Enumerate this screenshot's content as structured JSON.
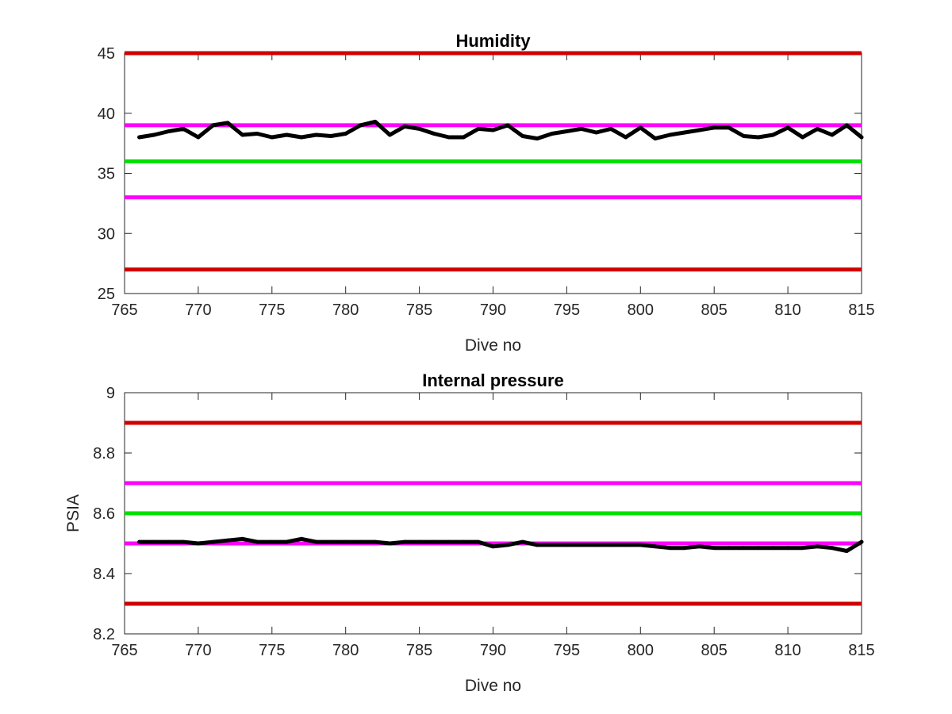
{
  "chart_data": [
    {
      "type": "line",
      "title": "Humidity",
      "xlabel": "Dive no",
      "ylabel": "",
      "xlim": [
        765,
        815
      ],
      "ylim": [
        25,
        45
      ],
      "x_ticks": [
        765,
        770,
        775,
        780,
        785,
        790,
        795,
        800,
        805,
        810,
        815
      ],
      "y_ticks": [
        25,
        30,
        35,
        40,
        45
      ],
      "y_tick_labels": [
        "25",
        "30",
        "35",
        "40",
        "45"
      ],
      "grid": false,
      "legend": "none",
      "thresholds": [
        {
          "y": 45,
          "color": "#d00000"
        },
        {
          "y": 39,
          "color": "#ff00ff"
        },
        {
          "y": 36,
          "color": "#00e000"
        },
        {
          "y": 33,
          "color": "#ff00ff"
        },
        {
          "y": 27,
          "color": "#d00000"
        }
      ],
      "series": [
        {
          "color": "#000000",
          "x": [
            766,
            767,
            768,
            769,
            770,
            771,
            772,
            773,
            774,
            775,
            776,
            777,
            778,
            779,
            780,
            781,
            782,
            783,
            784,
            785,
            786,
            787,
            788,
            789,
            790,
            791,
            792,
            793,
            794,
            795,
            796,
            797,
            798,
            799,
            800,
            801,
            802,
            803,
            804,
            805,
            806,
            807,
            808,
            809,
            810,
            811,
            812,
            813,
            814,
            815
          ],
          "y": [
            38.0,
            38.2,
            38.5,
            38.7,
            38.0,
            39.0,
            39.2,
            38.2,
            38.3,
            38.0,
            38.2,
            38.0,
            38.2,
            38.1,
            38.3,
            39.0,
            39.3,
            38.2,
            38.9,
            38.7,
            38.3,
            38.0,
            38.0,
            38.7,
            38.6,
            39.0,
            38.1,
            37.9,
            38.3,
            38.5,
            38.7,
            38.4,
            38.7,
            38.0,
            38.8,
            37.9,
            38.2,
            38.4,
            38.6,
            38.8,
            38.8,
            38.1,
            38.0,
            38.2,
            38.8,
            38.0,
            38.7,
            38.2,
            39.0,
            38.0
          ]
        }
      ]
    },
    {
      "type": "line",
      "title": "Internal pressure",
      "xlabel": "Dive no",
      "ylabel": "PSIA",
      "xlim": [
        765,
        815
      ],
      "ylim": [
        8.2,
        9.0
      ],
      "x_ticks": [
        765,
        770,
        775,
        780,
        785,
        790,
        795,
        800,
        805,
        810,
        815
      ],
      "y_ticks": [
        8.2,
        8.4,
        8.6,
        8.8,
        9.0
      ],
      "y_tick_labels": [
        "8.2",
        "8.4",
        "8.6",
        "8.8",
        "9"
      ],
      "grid": false,
      "legend": "none",
      "thresholds": [
        {
          "y": 8.9,
          "color": "#d00000"
        },
        {
          "y": 8.7,
          "color": "#ff00ff"
        },
        {
          "y": 8.6,
          "color": "#00e000"
        },
        {
          "y": 8.5,
          "color": "#ff00ff"
        },
        {
          "y": 8.3,
          "color": "#d00000"
        }
      ],
      "series": [
        {
          "color": "#000000",
          "x": [
            766,
            767,
            768,
            769,
            770,
            771,
            772,
            773,
            774,
            775,
            776,
            777,
            778,
            779,
            780,
            781,
            782,
            783,
            784,
            785,
            786,
            787,
            788,
            789,
            790,
            791,
            792,
            793,
            794,
            795,
            796,
            797,
            798,
            799,
            800,
            801,
            802,
            803,
            804,
            805,
            806,
            807,
            808,
            809,
            810,
            811,
            812,
            813,
            814,
            815
          ],
          "y": [
            8.505,
            8.505,
            8.505,
            8.505,
            8.5,
            8.505,
            8.51,
            8.515,
            8.505,
            8.505,
            8.505,
            8.515,
            8.505,
            8.505,
            8.505,
            8.505,
            8.505,
            8.5,
            8.505,
            8.505,
            8.505,
            8.505,
            8.505,
            8.505,
            8.49,
            8.495,
            8.505,
            8.495,
            8.495,
            8.495,
            8.495,
            8.495,
            8.495,
            8.495,
            8.495,
            8.49,
            8.485,
            8.485,
            8.49,
            8.485,
            8.485,
            8.485,
            8.485,
            8.485,
            8.485,
            8.485,
            8.49,
            8.485,
            8.475,
            8.505
          ]
        }
      ]
    }
  ]
}
